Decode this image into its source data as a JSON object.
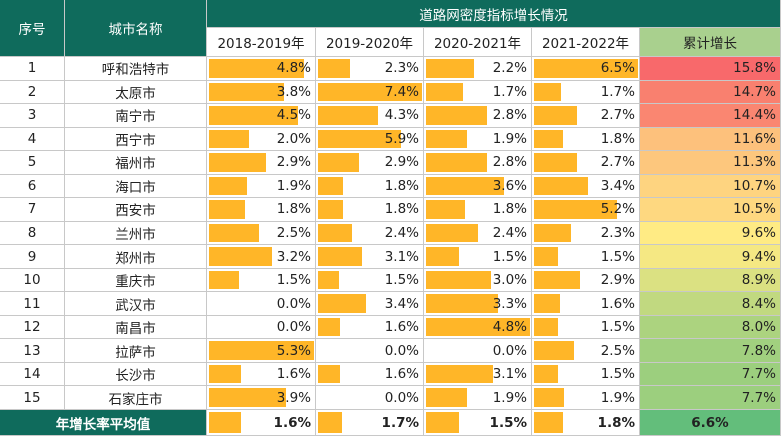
{
  "header": {
    "col_index": "序号",
    "col_city": "城市名称",
    "title": "道路网密度指标增长情况",
    "years": [
      "2018-2019年",
      "2019-2020年",
      "2020-2021年",
      "2021-2022年"
    ],
    "cum": "累计增长"
  },
  "table": {
    "rows": [
      [
        "1",
        "呼和浩特市",
        "4.8%",
        "2.3%",
        "2.2%",
        "6.5%",
        "15.8%"
      ],
      [
        "2",
        "太原市",
        "3.8%",
        "7.4%",
        "1.7%",
        "1.7%",
        "14.7%"
      ],
      [
        "3",
        "南宁市",
        "4.5%",
        "4.3%",
        "2.8%",
        "2.7%",
        "14.4%"
      ],
      [
        "4",
        "西宁市",
        "2.0%",
        "5.9%",
        "1.9%",
        "1.8%",
        "11.6%"
      ],
      [
        "5",
        "福州市",
        "2.9%",
        "2.9%",
        "2.8%",
        "2.7%",
        "11.3%"
      ],
      [
        "6",
        "海口市",
        "1.9%",
        "1.8%",
        "3.6%",
        "3.4%",
        "10.7%"
      ],
      [
        "7",
        "西安市",
        "1.8%",
        "1.8%",
        "1.8%",
        "5.2%",
        "10.5%"
      ],
      [
        "8",
        "兰州市",
        "2.5%",
        "2.4%",
        "2.4%",
        "2.3%",
        "9.6%"
      ],
      [
        "9",
        "郑州市",
        "3.2%",
        "3.1%",
        "1.5%",
        "1.5%",
        "9.4%"
      ],
      [
        "10",
        "重庆市",
        "1.5%",
        "1.5%",
        "3.0%",
        "2.9%",
        "8.9%"
      ],
      [
        "11",
        "武汉市",
        "0.0%",
        "3.4%",
        "3.3%",
        "1.6%",
        "8.4%"
      ],
      [
        "12",
        "南昌市",
        "0.0%",
        "1.6%",
        "4.8%",
        "1.5%",
        "8.0%"
      ],
      [
        "13",
        "拉萨市",
        "5.3%",
        "0.0%",
        "0.0%",
        "2.5%",
        "7.8%"
      ],
      [
        "14",
        "长沙市",
        "1.6%",
        "1.6%",
        "3.1%",
        "1.5%",
        "7.7%"
      ],
      [
        "15",
        "石家庄市",
        "3.9%",
        "0.0%",
        "1.9%",
        "1.9%",
        "7.7%"
      ]
    ],
    "footer": [
      "年增长率平均值",
      "1.6%",
      "1.7%",
      "1.5%",
      "1.8%",
      "6.6%"
    ]
  }
}
